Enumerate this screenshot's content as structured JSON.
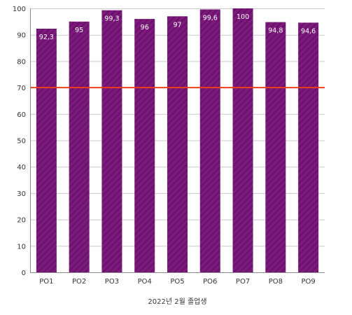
{
  "colors": {
    "bar": "#7e1a7e",
    "bar_stripe": "#6a126a",
    "reference_line": "#e8401a",
    "grid": "#c8c8c8",
    "axis": "#888888",
    "background": "#ffffff"
  },
  "chart_data": {
    "type": "bar",
    "title": "",
    "xlabel": "2022년 2월 졸업생",
    "ylabel": "",
    "categories": [
      "PO1",
      "PO2",
      "PO3",
      "PO4",
      "PO5",
      "PO6",
      "PO7",
      "PO8",
      "PO9"
    ],
    "values": [
      92.3,
      95,
      99.3,
      96,
      97,
      99.6,
      100,
      94.8,
      94.6
    ],
    "value_labels": [
      "92,3",
      "95",
      "99,3",
      "96",
      "97",
      "99,6",
      "100",
      "94,8",
      "94,6"
    ],
    "ylim": [
      0,
      100
    ],
    "yticks": [
      0,
      10,
      20,
      30,
      40,
      50,
      60,
      70,
      80,
      90,
      100
    ],
    "ytick_labels": [
      "0",
      "10",
      "20",
      "30",
      "40",
      "50",
      "60",
      "70",
      "80",
      "90",
      "100"
    ],
    "reference_line": 70,
    "grid": true,
    "legend": "none",
    "bar_pattern": "diagonal-stripes"
  }
}
